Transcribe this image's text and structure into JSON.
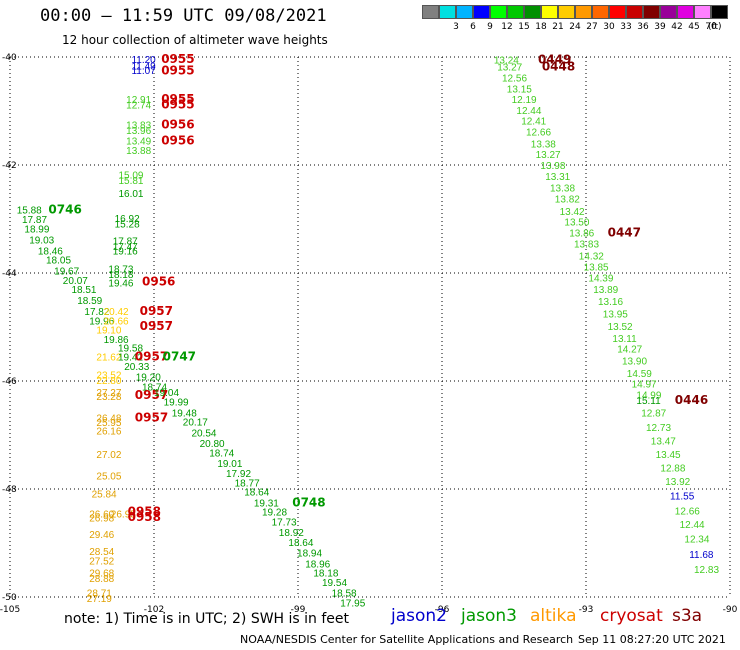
{
  "header": {
    "title": "00:00 – 11:59 UTC 09/08/2021",
    "subtitle": "12 hour collection of altimeter wave heights"
  },
  "color_scale": {
    "items": [
      {
        "label": "",
        "color": "#808080"
      },
      {
        "label": "3",
        "color": "#00e0e0"
      },
      {
        "label": "6",
        "color": "#00b4ff"
      },
      {
        "label": "9",
        "color": "#0000ff"
      },
      {
        "label": "12",
        "color": "#00ff00"
      },
      {
        "label": "15",
        "color": "#00c800"
      },
      {
        "label": "18",
        "color": "#009000"
      },
      {
        "label": "21",
        "color": "#ffff00"
      },
      {
        "label": "24",
        "color": "#ffcc00"
      },
      {
        "label": "27",
        "color": "#ff9900"
      },
      {
        "label": "30",
        "color": "#ff6600"
      },
      {
        "label": "33",
        "color": "#ff0000"
      },
      {
        "label": "36",
        "color": "#c80000"
      },
      {
        "label": "39",
        "color": "#800000"
      },
      {
        "label": "42",
        "color": "#990099"
      },
      {
        "label": "45",
        "color": "#e000e0"
      },
      {
        "label": "70",
        "color": "#ff80ff"
      },
      {
        "label": "",
        "color": "#000000"
      }
    ],
    "unit": "(ft)"
  },
  "footer": {
    "note": "note:  1) Time is in UTC; 2) SWH is in feet",
    "satellites": [
      {
        "name": "jason2",
        "color": "#0000cc"
      },
      {
        "name": "jason3",
        "color": "#009900"
      },
      {
        "name": "altika",
        "color": "#ff9900"
      },
      {
        "name": "cryosat",
        "color": "#cc0000"
      },
      {
        "name": "s3a",
        "color": "#800000"
      }
    ],
    "credit": "NOAA/NESDIS Center for Satellite Applications and Research",
    "timestamp": "Sep 11 08:27:20 UTC 2021"
  },
  "chart_data": {
    "type": "scatter",
    "title": "00:00 – 11:59 UTC 09/08/2021",
    "subtitle": "12 hour collection of altimeter wave heights",
    "xlim": [
      -105,
      -90
    ],
    "ylim": [
      -50,
      -40
    ],
    "x_ticks": [
      "-105",
      "-102",
      "-99",
      "-96",
      "-93",
      "-90"
    ],
    "y_ticks": [
      "-40",
      "-42",
      "-44",
      "-46",
      "-48",
      "-50"
    ],
    "grid": true,
    "colors": {
      "j2": "#0000cc",
      "j3": "#009900",
      "lj3": "#44cc22",
      "alt": "#ffcc00",
      "dalt": "#e0a000",
      "cryo": "#cc0000",
      "s3a": "#800000"
    },
    "series": [
      {
        "name": "jason2",
        "color": "j2"
      },
      {
        "name": "jason3",
        "color": "j3"
      },
      {
        "name": "altika",
        "color": "alt"
      },
      {
        "name": "cryosat",
        "color": "cryo"
      },
      {
        "name": "s3a",
        "color": "s3a"
      }
    ],
    "points": [
      {
        "x": -102.47,
        "y": -40.04,
        "v": "11.20",
        "c": "j2"
      },
      {
        "x": -102.47,
        "y": -40.16,
        "v": "11.49",
        "c": "j2"
      },
      {
        "x": -102.47,
        "y": -40.24,
        "v": "11.07",
        "c": "j2"
      },
      {
        "x": -101.85,
        "y": -40.04,
        "v": "0955",
        "c": "cryo",
        "t": true
      },
      {
        "x": -101.85,
        "y": -40.25,
        "v": "0955",
        "c": "cryo",
        "t": true
      },
      {
        "x": -102.58,
        "y": -40.78,
        "v": "12.91",
        "c": "lj3"
      },
      {
        "x": -102.58,
        "y": -40.88,
        "v": "12.74",
        "c": "lj3"
      },
      {
        "x": -101.85,
        "y": -40.78,
        "v": "0955",
        "c": "cryo",
        "t": true
      },
      {
        "x": -101.85,
        "y": -40.88,
        "v": "0955",
        "c": "cryo",
        "t": true
      },
      {
        "x": -102.58,
        "y": -41.25,
        "v": "13.83",
        "c": "lj3"
      },
      {
        "x": -102.58,
        "y": -41.35,
        "v": "13.96",
        "c": "lj3"
      },
      {
        "x": -101.85,
        "y": -41.25,
        "v": "0956",
        "c": "cryo",
        "t": true
      },
      {
        "x": -102.58,
        "y": -41.55,
        "v": "13.49",
        "c": "lj3"
      },
      {
        "x": -102.58,
        "y": -41.72,
        "v": "13.88",
        "c": "lj3"
      },
      {
        "x": -101.85,
        "y": -41.55,
        "v": "0956",
        "c": "cryo",
        "t": true
      },
      {
        "x": -102.74,
        "y": -42.18,
        "v": "15.09",
        "c": "lj3"
      },
      {
        "x": -102.74,
        "y": -42.28,
        "v": "15.81",
        "c": "lj3"
      },
      {
        "x": -102.74,
        "y": -42.52,
        "v": "16.01",
        "c": "j3"
      },
      {
        "x": -104.86,
        "y": -42.82,
        "v": "15.88",
        "c": "j3"
      },
      {
        "x": -104.2,
        "y": -42.82,
        "v": "0746",
        "c": "j3",
        "t": true
      },
      {
        "x": -104.75,
        "y": -43.0,
        "v": "17.87",
        "c": "j3"
      },
      {
        "x": -104.7,
        "y": -43.18,
        "v": "18.99",
        "c": "j3"
      },
      {
        "x": -104.6,
        "y": -43.38,
        "v": "19.03",
        "c": "j3"
      },
      {
        "x": -104.42,
        "y": -43.58,
        "v": "18.46",
        "c": "j3"
      },
      {
        "x": -104.25,
        "y": -43.75,
        "v": "18.05",
        "c": "j3"
      },
      {
        "x": -104.08,
        "y": -43.95,
        "v": "19.67",
        "c": "j3"
      },
      {
        "x": -103.9,
        "y": -44.13,
        "v": "20.07",
        "c": "j3"
      },
      {
        "x": -103.72,
        "y": -44.3,
        "v": "18.51",
        "c": "j3"
      },
      {
        "x": -103.6,
        "y": -44.5,
        "v": "18.59",
        "c": "j3"
      },
      {
        "x": -102.82,
        "y": -42.98,
        "v": "16.92",
        "c": "j3"
      },
      {
        "x": -102.82,
        "y": -43.08,
        "v": "15.28",
        "c": "j3"
      },
      {
        "x": -102.86,
        "y": -43.4,
        "v": "17.87",
        "c": "j3"
      },
      {
        "x": -102.86,
        "y": -43.5,
        "v": "17.47",
        "c": "j3"
      },
      {
        "x": -102.86,
        "y": -43.58,
        "v": "19.16",
        "c": "j3"
      },
      {
        "x": -102.95,
        "y": -43.92,
        "v": "18.73",
        "c": "j3"
      },
      {
        "x": -102.95,
        "y": -44.02,
        "v": "18.18",
        "c": "j3"
      },
      {
        "x": -102.95,
        "y": -44.18,
        "v": "19.46",
        "c": "j3"
      },
      {
        "x": -102.25,
        "y": -44.16,
        "v": "0956",
        "c": "cryo",
        "t": true
      },
      {
        "x": -103.45,
        "y": -44.7,
        "v": "17.82",
        "c": "j3"
      },
      {
        "x": -103.05,
        "y": -44.7,
        "v": "20.42",
        "c": "alt"
      },
      {
        "x": -103.35,
        "y": -44.88,
        "v": "19.96",
        "c": "j3"
      },
      {
        "x": -103.05,
        "y": -44.88,
        "v": "20.66",
        "c": "alt"
      },
      {
        "x": -103.2,
        "y": -45.05,
        "v": "19.10",
        "c": "alt"
      },
      {
        "x": -102.3,
        "y": -44.7,
        "v": "0957",
        "c": "cryo",
        "t": true
      },
      {
        "x": -102.3,
        "y": -44.98,
        "v": "0957",
        "c": "cryo",
        "t": true
      },
      {
        "x": -103.05,
        "y": -45.22,
        "v": "19.86",
        "c": "j3"
      },
      {
        "x": -102.75,
        "y": -45.38,
        "v": "19.58",
        "c": "j3"
      },
      {
        "x": -103.2,
        "y": -45.55,
        "v": "21.62",
        "c": "alt"
      },
      {
        "x": -102.75,
        "y": -45.55,
        "v": "19.42",
        "c": "j3"
      },
      {
        "x": -102.4,
        "y": -45.55,
        "v": "0957",
        "c": "cryo",
        "t": true
      },
      {
        "x": -101.82,
        "y": -45.55,
        "v": "0747",
        "c": "j3",
        "t": true
      },
      {
        "x": -102.62,
        "y": -45.72,
        "v": "20.33",
        "c": "j3"
      },
      {
        "x": -103.2,
        "y": -45.88,
        "v": "23.52",
        "c": "alt"
      },
      {
        "x": -103.2,
        "y": -45.98,
        "v": "22.80",
        "c": "alt"
      },
      {
        "x": -102.38,
        "y": -45.92,
        "v": "19.20",
        "c": "j3"
      },
      {
        "x": -102.25,
        "y": -46.1,
        "v": "18.74",
        "c": "j3"
      },
      {
        "x": -103.2,
        "y": -46.2,
        "v": "27.27",
        "c": "dalt"
      },
      {
        "x": -103.2,
        "y": -46.28,
        "v": "23.28",
        "c": "dalt"
      },
      {
        "x": -102.4,
        "y": -46.26,
        "v": "0957",
        "c": "cryo",
        "t": true
      },
      {
        "x": -102.0,
        "y": -46.2,
        "v": "19.04",
        "c": "j3"
      },
      {
        "x": -101.8,
        "y": -46.38,
        "v": "19.99",
        "c": "j3"
      },
      {
        "x": -101.63,
        "y": -46.58,
        "v": "19.48",
        "c": "j3"
      },
      {
        "x": -103.2,
        "y": -46.68,
        "v": "26.48",
        "c": "dalt"
      },
      {
        "x": -103.2,
        "y": -46.76,
        "v": "25.95",
        "c": "dalt"
      },
      {
        "x": -103.2,
        "y": -46.92,
        "v": "26.16",
        "c": "dalt"
      },
      {
        "x": -102.4,
        "y": -46.68,
        "v": "0957",
        "c": "cryo",
        "t": true
      },
      {
        "x": -101.4,
        "y": -46.75,
        "v": "20.17",
        "c": "j3"
      },
      {
        "x": -101.22,
        "y": -46.95,
        "v": "20.54",
        "c": "j3"
      },
      {
        "x": -101.05,
        "y": -47.15,
        "v": "20.80",
        "c": "j3"
      },
      {
        "x": -103.2,
        "y": -47.35,
        "v": "27.02",
        "c": "dalt"
      },
      {
        "x": -100.85,
        "y": -47.32,
        "v": "18.74",
        "c": "j3"
      },
      {
        "x": -100.68,
        "y": -47.52,
        "v": "19.01",
        "c": "j3"
      },
      {
        "x": -103.2,
        "y": -47.75,
        "v": "25.05",
        "c": "dalt"
      },
      {
        "x": -100.5,
        "y": -47.7,
        "v": "17.92",
        "c": "j3"
      },
      {
        "x": -100.32,
        "y": -47.88,
        "v": "18.77",
        "c": "j3"
      },
      {
        "x": -103.3,
        "y": -48.08,
        "v": "25.84",
        "c": "dalt"
      },
      {
        "x": -100.12,
        "y": -48.05,
        "v": "18.64",
        "c": "j3"
      },
      {
        "x": -103.35,
        "y": -48.45,
        "v": "26.60",
        "c": "dalt"
      },
      {
        "x": -102.9,
        "y": -48.45,
        "v": "26.95",
        "c": "dalt"
      },
      {
        "x": -103.35,
        "y": -48.53,
        "v": "26.98",
        "c": "dalt"
      },
      {
        "x": -102.55,
        "y": -48.42,
        "v": "0958",
        "c": "cryo",
        "t": true
      },
      {
        "x": -102.55,
        "y": -48.52,
        "v": "0958",
        "c": "cryo",
        "t": true
      },
      {
        "x": -99.92,
        "y": -48.25,
        "v": "19.31",
        "c": "j3"
      },
      {
        "x": -99.12,
        "y": -48.25,
        "v": "0748",
        "c": "j3",
        "t": true
      },
      {
        "x": -99.75,
        "y": -48.42,
        "v": "19.28",
        "c": "j3"
      },
      {
        "x": -99.55,
        "y": -48.6,
        "v": "17.73",
        "c": "j3"
      },
      {
        "x": -103.35,
        "y": -48.83,
        "v": "29.46",
        "c": "dalt"
      },
      {
        "x": -99.4,
        "y": -48.8,
        "v": "18.92",
        "c": "j3"
      },
      {
        "x": -99.2,
        "y": -48.98,
        "v": "18.64",
        "c": "j3"
      },
      {
        "x": -103.35,
        "y": -49.15,
        "v": "28.54",
        "c": "dalt"
      },
      {
        "x": -103.35,
        "y": -49.32,
        "v": "27.52",
        "c": "dalt"
      },
      {
        "x": -99.02,
        "y": -49.18,
        "v": "18.94",
        "c": "j3"
      },
      {
        "x": -98.85,
        "y": -49.38,
        "v": "18.96",
        "c": "j3"
      },
      {
        "x": -103.35,
        "y": -49.55,
        "v": "29.68",
        "c": "dalt"
      },
      {
        "x": -103.35,
        "y": -49.65,
        "v": "28.88",
        "c": "dalt"
      },
      {
        "x": -98.68,
        "y": -49.55,
        "v": "18.18",
        "c": "j3"
      },
      {
        "x": -98.5,
        "y": -49.72,
        "v": "19.54",
        "c": "j3"
      },
      {
        "x": -103.4,
        "y": -49.92,
        "v": "28.71",
        "c": "dalt"
      },
      {
        "x": -103.4,
        "y": -50.02,
        "v": "27.19",
        "c": "dalt"
      },
      {
        "x": -98.3,
        "y": -49.92,
        "v": "18.58",
        "c": "j3"
      },
      {
        "x": -98.12,
        "y": -50.1,
        "v": "17.95",
        "c": "j3"
      },
      {
        "x": -94.92,
        "y": -40.05,
        "v": "13.24",
        "c": "lj3"
      },
      {
        "x": -94.85,
        "y": -40.18,
        "v": "13.27",
        "c": "lj3"
      },
      {
        "x": -94.0,
        "y": -40.05,
        "v": "0449",
        "c": "s3a",
        "t": true
      },
      {
        "x": -93.92,
        "y": -40.18,
        "v": "0448",
        "c": "s3a",
        "t": true
      },
      {
        "x": -94.75,
        "y": -40.38,
        "v": "12.56",
        "c": "lj3"
      },
      {
        "x": -94.65,
        "y": -40.58,
        "v": "13.15",
        "c": "lj3"
      },
      {
        "x": -94.55,
        "y": -40.78,
        "v": "12.19",
        "c": "lj3"
      },
      {
        "x": -94.45,
        "y": -40.98,
        "v": "12.44",
        "c": "lj3"
      },
      {
        "x": -94.35,
        "y": -41.18,
        "v": "12.41",
        "c": "lj3"
      },
      {
        "x": -94.25,
        "y": -41.38,
        "v": "12.66",
        "c": "lj3"
      },
      {
        "x": -94.15,
        "y": -41.6,
        "v": "13.38",
        "c": "lj3"
      },
      {
        "x": -94.05,
        "y": -41.8,
        "v": "13.27",
        "c": "lj3"
      },
      {
        "x": -93.95,
        "y": -42.0,
        "v": "13.98",
        "c": "lj3"
      },
      {
        "x": -93.85,
        "y": -42.2,
        "v": "13.31",
        "c": "lj3"
      },
      {
        "x": -93.75,
        "y": -42.42,
        "v": "13.38",
        "c": "lj3"
      },
      {
        "x": -93.65,
        "y": -42.62,
        "v": "13.82",
        "c": "lj3"
      },
      {
        "x": -93.55,
        "y": -42.85,
        "v": "13.42",
        "c": "lj3"
      },
      {
        "x": -93.45,
        "y": -43.05,
        "v": "13.50",
        "c": "lj3"
      },
      {
        "x": -93.35,
        "y": -43.25,
        "v": "13.86",
        "c": "lj3"
      },
      {
        "x": -92.55,
        "y": -43.25,
        "v": "0447",
        "c": "s3a",
        "t": true
      },
      {
        "x": -93.25,
        "y": -43.45,
        "v": "13.83",
        "c": "lj3"
      },
      {
        "x": -93.15,
        "y": -43.68,
        "v": "14.32",
        "c": "lj3"
      },
      {
        "x": -93.05,
        "y": -43.88,
        "v": "13.85",
        "c": "lj3"
      },
      {
        "x": -92.95,
        "y": -44.08,
        "v": "14.39",
        "c": "lj3"
      },
      {
        "x": -92.85,
        "y": -44.3,
        "v": "13.89",
        "c": "lj3"
      },
      {
        "x": -92.75,
        "y": -44.52,
        "v": "13.16",
        "c": "lj3"
      },
      {
        "x": -92.65,
        "y": -44.75,
        "v": "13.95",
        "c": "lj3"
      },
      {
        "x": -92.55,
        "y": -44.98,
        "v": "13.52",
        "c": "lj3"
      },
      {
        "x": -92.45,
        "y": -45.2,
        "v": "13.11",
        "c": "lj3"
      },
      {
        "x": -92.35,
        "y": -45.4,
        "v": "14.27",
        "c": "lj3"
      },
      {
        "x": -92.25,
        "y": -45.62,
        "v": "13.90",
        "c": "lj3"
      },
      {
        "x": -92.15,
        "y": -45.85,
        "v": "14.59",
        "c": "lj3"
      },
      {
        "x": -92.05,
        "y": -46.05,
        "v": "14.97",
        "c": "lj3"
      },
      {
        "x": -91.95,
        "y": -46.25,
        "v": "14.99",
        "c": "lj3"
      },
      {
        "x": -91.95,
        "y": -46.35,
        "v": "15.11",
        "c": "j3"
      },
      {
        "x": -91.15,
        "y": -46.35,
        "v": "0446",
        "c": "s3a",
        "t": true
      },
      {
        "x": -91.85,
        "y": -46.58,
        "v": "12.87",
        "c": "lj3"
      },
      {
        "x": -91.75,
        "y": -46.85,
        "v": "12.73",
        "c": "lj3"
      },
      {
        "x": -91.65,
        "y": -47.1,
        "v": "13.47",
        "c": "lj3"
      },
      {
        "x": -91.55,
        "y": -47.35,
        "v": "13.45",
        "c": "lj3"
      },
      {
        "x": -91.45,
        "y": -47.6,
        "v": "12.88",
        "c": "lj3"
      },
      {
        "x": -91.35,
        "y": -47.85,
        "v": "13.92",
        "c": "lj3"
      },
      {
        "x": -91.25,
        "y": -48.12,
        "v": "11.55",
        "c": "j2"
      },
      {
        "x": -91.15,
        "y": -48.4,
        "v": "12.66",
        "c": "lj3"
      },
      {
        "x": -91.05,
        "y": -48.65,
        "v": "12.44",
        "c": "lj3"
      },
      {
        "x": -90.95,
        "y": -48.92,
        "v": "12.34",
        "c": "lj3"
      },
      {
        "x": -90.85,
        "y": -49.2,
        "v": "11.68",
        "c": "j2"
      },
      {
        "x": -90.75,
        "y": -49.48,
        "v": "12.83",
        "c": "lj3"
      }
    ]
  }
}
